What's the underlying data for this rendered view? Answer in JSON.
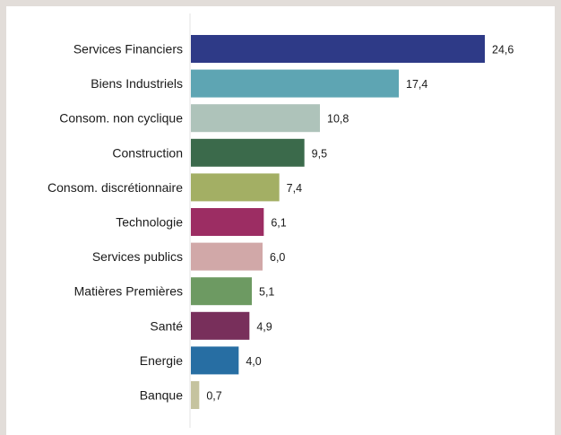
{
  "chart_data": {
    "type": "bar",
    "orientation": "horizontal",
    "title": "",
    "xlabel": "",
    "ylabel": "",
    "xlim": [
      0,
      24.6
    ],
    "grid": false,
    "categories": [
      "Services Financiers",
      "Biens Industriels",
      "Consom. non cyclique",
      "Construction",
      "Consom. discrétionnaire",
      "Technologie",
      "Services publics",
      "Matières Premières",
      "Santé",
      "Energie",
      "Banque"
    ],
    "values": [
      24.6,
      17.4,
      10.8,
      9.5,
      7.4,
      6.1,
      6.0,
      5.1,
      4.9,
      4.0,
      0.7
    ],
    "value_labels": [
      "24,6",
      "17,4",
      "10,8",
      "9,5",
      "7,4",
      "6,1",
      "6,0",
      "5,1",
      "4,9",
      "4,0",
      "0,7"
    ],
    "colors": [
      "#2e3a87",
      "#5ea5b3",
      "#aec3ba",
      "#3b6a4b",
      "#a3af64",
      "#9c2d63",
      "#d1a8a8",
      "#6d9a62",
      "#782f5b",
      "#276ea3",
      "#c5c39f"
    ]
  }
}
